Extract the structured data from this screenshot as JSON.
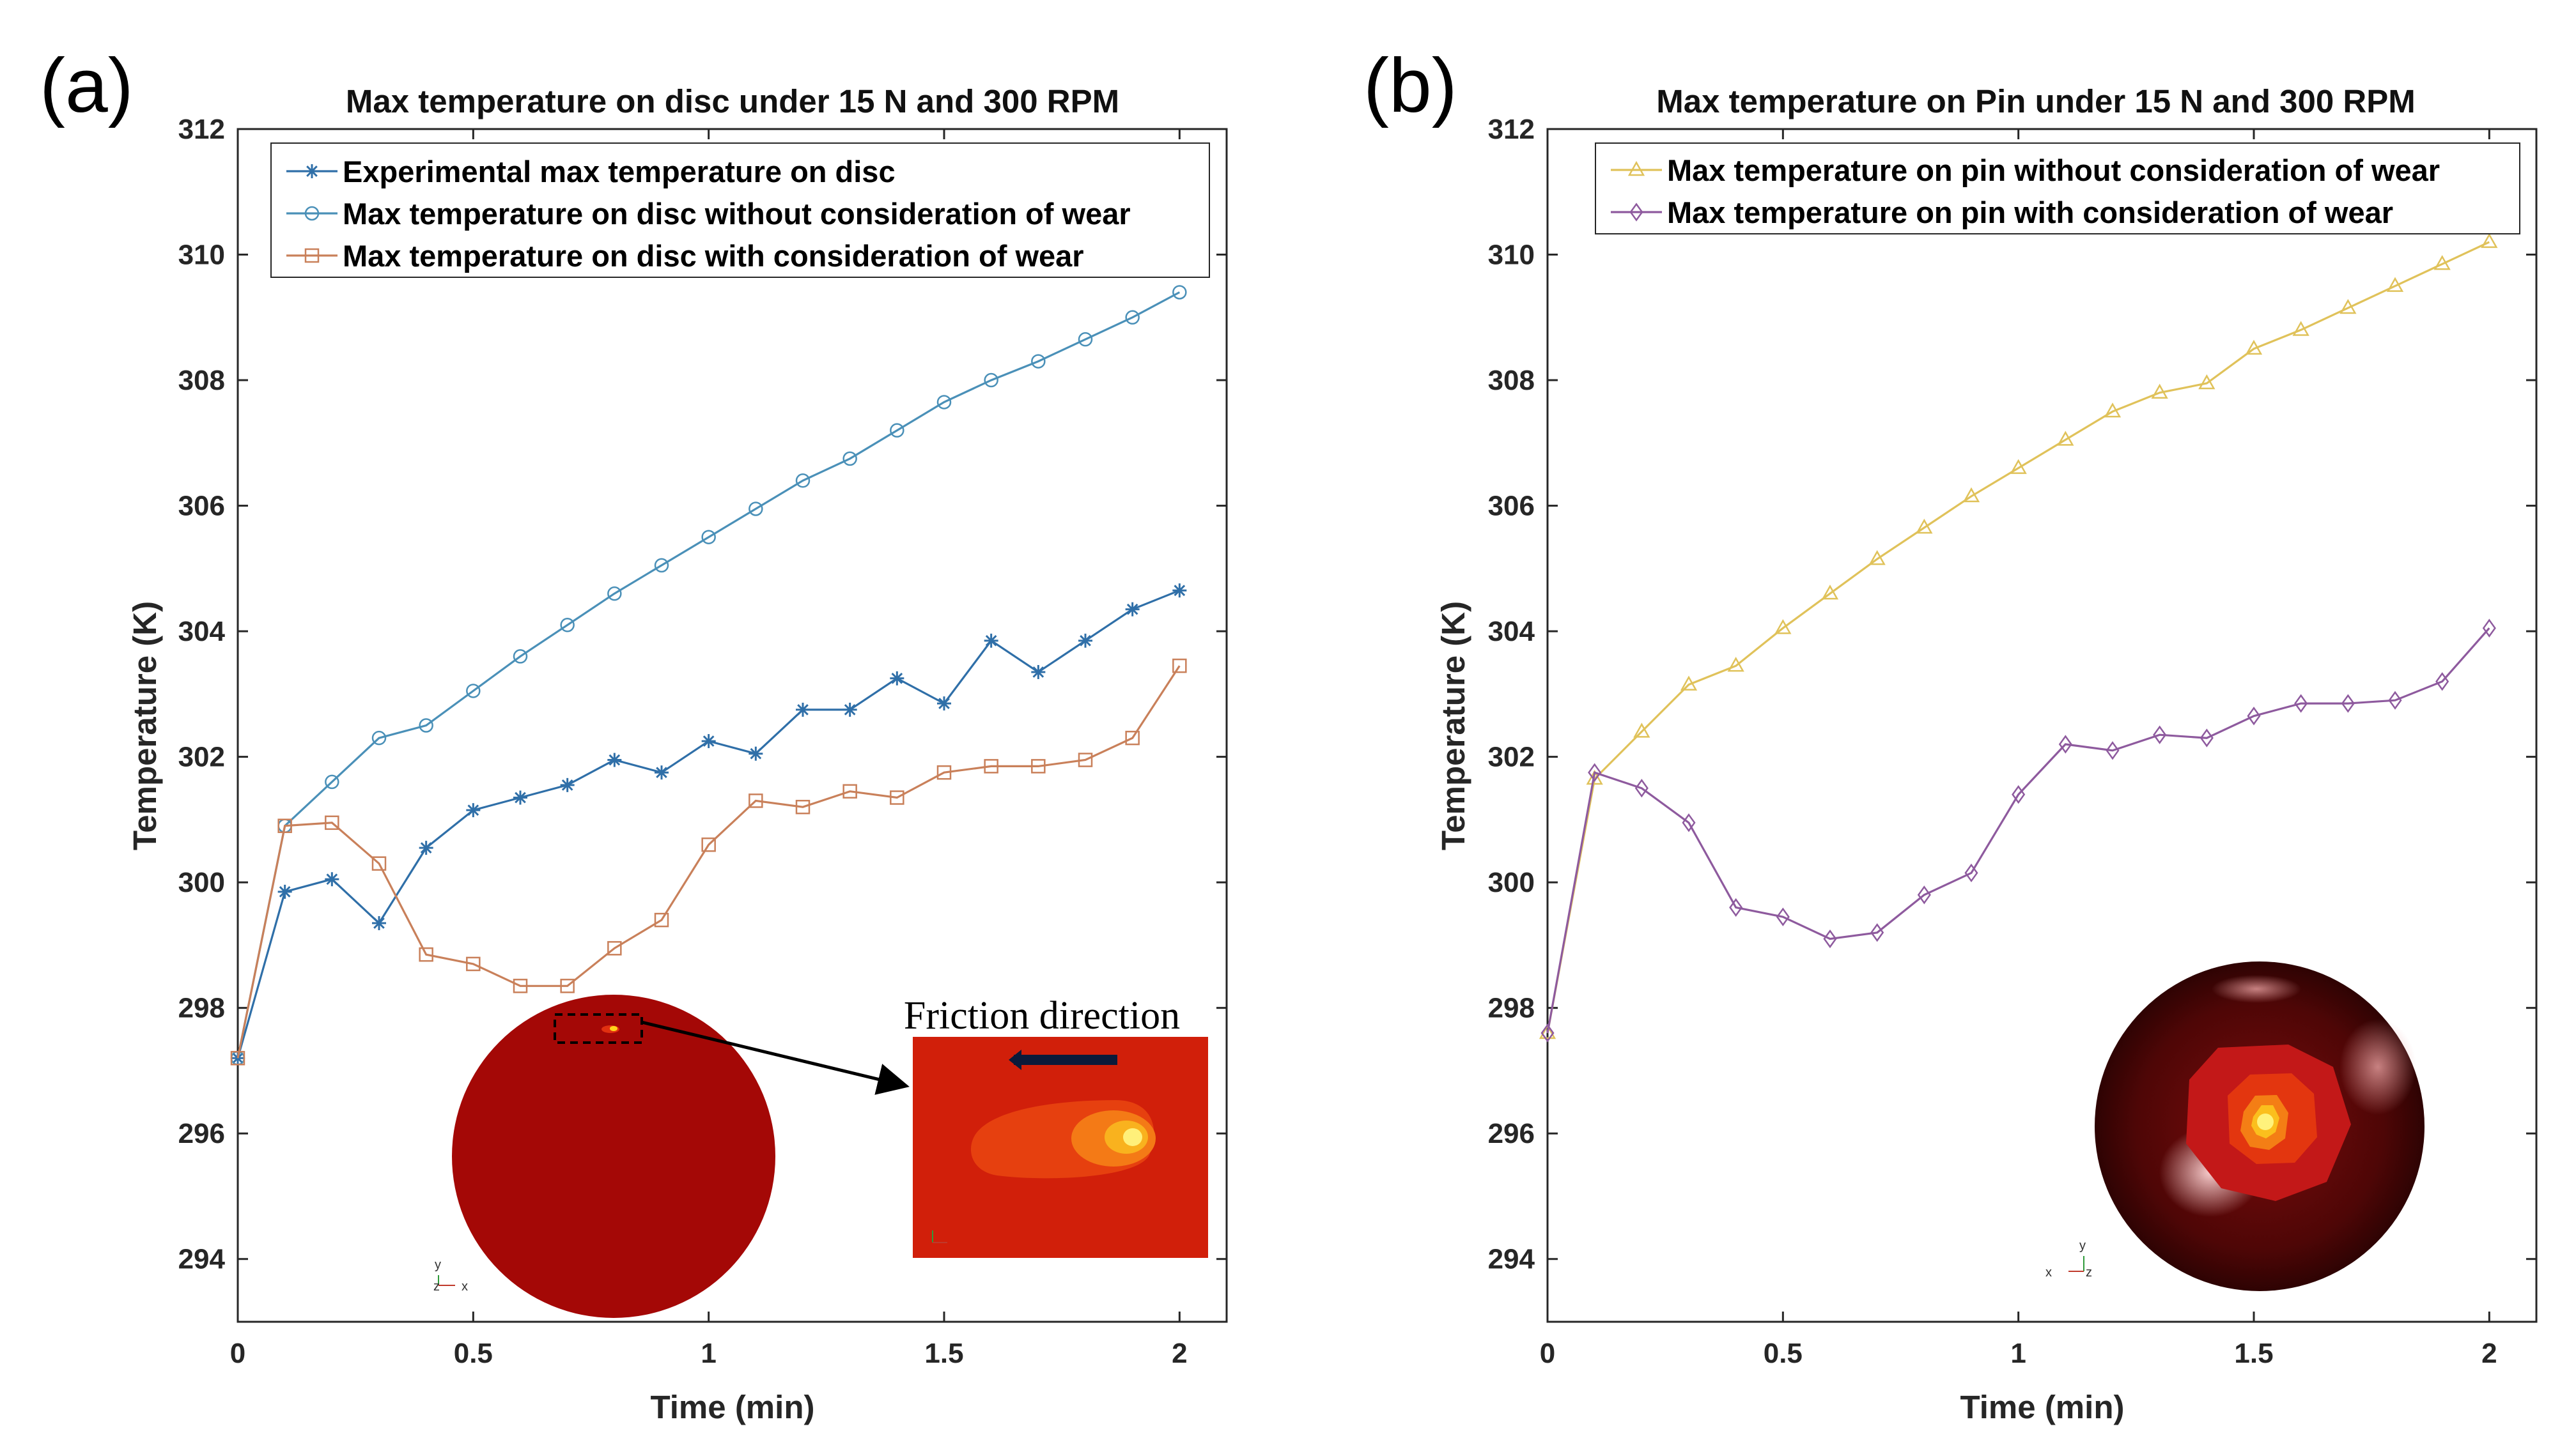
{
  "chart_data": [
    {
      "panel": "(a)",
      "type": "line",
      "title": "Max temperature on disc under 15 N and 300 RPM",
      "xlabel": "Time (min)",
      "ylabel": "Temperature (K)",
      "xlim": [
        0,
        2.1
      ],
      "ylim": [
        293,
        312
      ],
      "xticks": [
        0,
        0.5,
        1,
        1.5,
        2
      ],
      "xtick_labels": [
        "0",
        "0.5",
        "1",
        "1.5",
        "2"
      ],
      "yticks": [
        294,
        296,
        298,
        300,
        302,
        304,
        306,
        308,
        310,
        312
      ],
      "legend_location": "top-left",
      "grid": false,
      "x": [
        0,
        0.1,
        0.2,
        0.3,
        0.4,
        0.5,
        0.6,
        0.7,
        0.8,
        0.9,
        1.0,
        1.1,
        1.2,
        1.3,
        1.4,
        1.5,
        1.6,
        1.7,
        1.8,
        1.9,
        2.0
      ],
      "series": [
        {
          "name": "Experimental max temperature on disc",
          "color": "#2f6fa8",
          "marker": "asterisk",
          "values": [
            297.2,
            299.85,
            300.05,
            299.35,
            300.55,
            301.15,
            301.35,
            301.55,
            301.95,
            301.75,
            302.25,
            302.05,
            302.75,
            302.75,
            303.25,
            302.85,
            303.85,
            303.35,
            303.85,
            304.35,
            304.65
          ]
        },
        {
          "name": "Max temperature on disc without consideration of wear",
          "color": "#4a90b8",
          "marker": "circle",
          "values": [
            297.2,
            300.9,
            301.6,
            302.3,
            302.5,
            303.05,
            303.6,
            304.1,
            304.6,
            305.05,
            305.5,
            305.95,
            306.4,
            306.75,
            307.2,
            307.65,
            308.0,
            308.3,
            308.65,
            309.0,
            309.4
          ]
        },
        {
          "name": "Max temperature on disc with consideration of wear",
          "color": "#c9805a",
          "marker": "square",
          "values": [
            297.2,
            300.9,
            300.95,
            300.3,
            298.85,
            298.7,
            298.35,
            298.35,
            298.95,
            299.4,
            300.6,
            301.3,
            301.2,
            301.45,
            301.35,
            301.75,
            301.85,
            301.85,
            301.95,
            302.3,
            303.45
          ]
        }
      ],
      "annotation": "Friction direction",
      "inset_axis_labels": [
        "y",
        "z",
        "x"
      ]
    },
    {
      "panel": "(b)",
      "type": "line",
      "title": "Max temperature on Pin under 15 N and 300 RPM",
      "xlabel": "Time (min)",
      "ylabel": "Temperature (K)",
      "xlim": [
        0,
        2.1
      ],
      "ylim": [
        293,
        312
      ],
      "xticks": [
        0,
        0.5,
        1,
        1.5,
        2
      ],
      "xtick_labels": [
        "0",
        "0.5",
        "1",
        "1.5",
        "2"
      ],
      "yticks": [
        294,
        296,
        298,
        300,
        302,
        304,
        306,
        308,
        310,
        312
      ],
      "legend_location": "top-right",
      "grid": false,
      "x": [
        0,
        0.1,
        0.2,
        0.3,
        0.4,
        0.5,
        0.6,
        0.7,
        0.8,
        0.9,
        1.0,
        1.1,
        1.2,
        1.3,
        1.4,
        1.5,
        1.6,
        1.7,
        1.8,
        1.9,
        2.0
      ],
      "series": [
        {
          "name": "Max temperature on pin without consideration of wear",
          "color": "#e0c25a",
          "marker": "triangle",
          "values": [
            297.6,
            301.65,
            302.4,
            303.15,
            303.45,
            304.05,
            304.6,
            305.15,
            305.65,
            306.15,
            306.6,
            307.05,
            307.5,
            307.8,
            307.95,
            308.5,
            308.8,
            309.15,
            309.5,
            309.85,
            310.2
          ]
        },
        {
          "name": "Max temperature on pin with consideration of wear",
          "color": "#8e5a9e",
          "marker": "diamond",
          "values": [
            297.6,
            301.75,
            301.5,
            300.95,
            299.6,
            299.45,
            299.1,
            299.2,
            299.8,
            300.15,
            301.4,
            302.2,
            302.1,
            302.35,
            302.3,
            302.65,
            302.85,
            302.85,
            302.9,
            303.2,
            304.05
          ]
        }
      ],
      "inset_axis_labels": [
        "y",
        "x",
        "z"
      ]
    }
  ]
}
